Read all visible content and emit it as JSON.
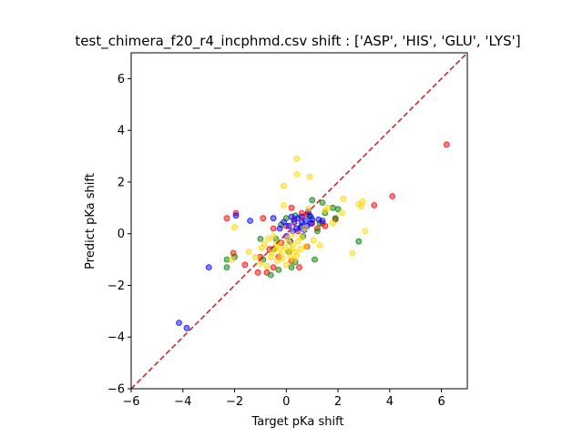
{
  "chart_data": {
    "type": "scatter",
    "title": "test_chimera_f20_r4_incphmd.csv shift : ['ASP', 'HIS', 'GLU', 'LYS']",
    "xlabel": "Target pKa shift",
    "ylabel": "Predict pKa shift",
    "xlim": [
      -6,
      7
    ],
    "ylim": [
      -6,
      7
    ],
    "xticks": [
      -6,
      -4,
      -2,
      0,
      2,
      4,
      6
    ],
    "yticks": [
      -6,
      -4,
      -2,
      0,
      2,
      4,
      6
    ],
    "xtick_labels": [
      "−6",
      "−4",
      "−2",
      "0",
      "2",
      "4",
      "6"
    ],
    "ytick_labels": [
      "−6",
      "−4",
      "−2",
      "0",
      "2",
      "4",
      "6"
    ],
    "grid": false,
    "legend": false,
    "reference_line": {
      "x": [
        -6,
        7
      ],
      "y": [
        -6,
        7
      ],
      "style": "dashed",
      "color": "#d62728"
    },
    "marker_opacity": 0.5,
    "series": [
      {
        "color": "#ff0000",
        "points": [
          [
            6.2,
            3.45
          ],
          [
            4.1,
            1.45
          ],
          [
            3.4,
            1.1
          ],
          [
            -2.3,
            0.6
          ],
          [
            -1.95,
            0.8
          ],
          [
            -2.05,
            -0.75
          ],
          [
            -1.6,
            -1.2
          ],
          [
            -1.1,
            -1.5
          ],
          [
            -0.75,
            -1.5
          ],
          [
            -0.5,
            -1.3
          ],
          [
            -0.9,
            0.6
          ],
          [
            -0.5,
            0.2
          ],
          [
            0.2,
            1.0
          ],
          [
            0.6,
            0.8
          ],
          [
            0.8,
            0.75
          ],
          [
            1.0,
            0.4
          ],
          [
            1.2,
            0.2
          ],
          [
            1.4,
            0.4
          ],
          [
            0.5,
            -1.3
          ],
          [
            0.2,
            -1.05
          ],
          [
            -0.2,
            -0.35
          ],
          [
            0.0,
            0.3
          ],
          [
            0.45,
            0.1
          ],
          [
            1.5,
            0.3
          ],
          [
            -0.3,
            -0.9
          ],
          [
            0.8,
            -0.5
          ],
          [
            1.9,
            0.55
          ],
          [
            0.3,
            0.55
          ],
          [
            -1.0,
            -0.9
          ],
          [
            -0.65,
            -0.6
          ]
        ]
      },
      {
        "color": "#008000",
        "points": [
          [
            -2.3,
            -1.3
          ],
          [
            -2.3,
            -1.0
          ],
          [
            -2.0,
            -0.9
          ],
          [
            -1.0,
            -0.2
          ],
          [
            -0.6,
            -1.6
          ],
          [
            -0.3,
            -1.4
          ],
          [
            0.2,
            -1.3
          ],
          [
            0.35,
            -1.1
          ],
          [
            1.1,
            -1.0
          ],
          [
            0.0,
            0.6
          ],
          [
            0.35,
            0.7
          ],
          [
            1.0,
            1.3
          ],
          [
            1.4,
            1.2
          ],
          [
            1.5,
            0.8
          ],
          [
            1.8,
            1.0
          ],
          [
            1.9,
            0.6
          ],
          [
            2.0,
            0.95
          ],
          [
            2.8,
            -0.3
          ],
          [
            1.2,
            0.1
          ],
          [
            -0.5,
            -0.6
          ],
          [
            0.6,
            0.3
          ],
          [
            -0.2,
            0.35
          ],
          [
            0.1,
            -0.7
          ],
          [
            0.65,
            -0.1
          ],
          [
            -0.9,
            -1.0
          ],
          [
            1.3,
            0.4
          ],
          [
            0.95,
            0.65
          ],
          [
            -0.4,
            -0.2
          ]
        ]
      },
      {
        "color": "#0000ff",
        "points": [
          [
            -4.15,
            -3.45
          ],
          [
            -3.85,
            -3.65
          ],
          [
            -3.0,
            -1.3
          ],
          [
            -1.95,
            0.7
          ],
          [
            -1.4,
            0.5
          ],
          [
            -0.5,
            0.6
          ],
          [
            -0.25,
            0.2
          ],
          [
            0.1,
            0.3
          ],
          [
            0.25,
            0.1
          ],
          [
            0.4,
            0.2
          ],
          [
            0.6,
            0.45
          ],
          [
            0.75,
            0.5
          ],
          [
            0.9,
            0.7
          ],
          [
            1.0,
            0.55
          ],
          [
            0.8,
            0.3
          ],
          [
            0.55,
            0.25
          ],
          [
            0.3,
            0.45
          ],
          [
            0.2,
            0.65
          ],
          [
            1.4,
            0.5
          ],
          [
            0.0,
            -0.1
          ],
          [
            0.45,
            0.6
          ],
          [
            0.7,
            0.15
          ],
          [
            0.95,
            0.4
          ],
          [
            -0.1,
            0.45
          ],
          [
            1.25,
            0.55
          ],
          [
            0.15,
            -0.3
          ],
          [
            0.85,
            0.85
          ],
          [
            0.6,
            0.65
          ]
        ]
      },
      {
        "color": "#ffd700",
        "points": [
          [
            0.4,
            2.9
          ],
          [
            0.4,
            2.3
          ],
          [
            -0.1,
            1.85
          ],
          [
            0.9,
            2.2
          ],
          [
            2.2,
            1.35
          ],
          [
            2.95,
            1.25
          ],
          [
            2.9,
            1.05
          ],
          [
            3.05,
            0.1
          ],
          [
            2.55,
            -0.75
          ],
          [
            1.8,
            0.4
          ],
          [
            -0.1,
            1.1
          ],
          [
            -2.0,
            0.25
          ],
          [
            -2.1,
            -1.0
          ],
          [
            -1.45,
            -0.7
          ],
          [
            -1.2,
            -0.9
          ],
          [
            -1.0,
            -1.15
          ],
          [
            -0.85,
            -0.4
          ],
          [
            -0.75,
            -1.25
          ],
          [
            -0.6,
            -0.9
          ],
          [
            -0.45,
            -0.6
          ],
          [
            -0.3,
            -0.35
          ],
          [
            -0.2,
            -0.8
          ],
          [
            -0.05,
            -0.55
          ],
          [
            0.05,
            -0.2
          ],
          [
            0.15,
            -0.9
          ],
          [
            0.25,
            -0.45
          ],
          [
            0.35,
            -0.7
          ],
          [
            0.45,
            -0.3
          ],
          [
            0.55,
            -0.6
          ],
          [
            0.7,
            0.2
          ],
          [
            1.05,
            -0.25
          ],
          [
            1.3,
            -0.45
          ],
          [
            1.5,
            0.9
          ],
          [
            2.15,
            0.8
          ],
          [
            2.8,
            1.15
          ],
          [
            -0.5,
            -0.1
          ],
          [
            -0.35,
            -1.05
          ],
          [
            0.0,
            -1.2
          ],
          [
            0.2,
            -0.05
          ],
          [
            0.85,
            0.95
          ],
          [
            -0.7,
            -0.2
          ],
          [
            -0.15,
            -0.95
          ],
          [
            0.1,
            -0.35
          ],
          [
            0.3,
            -1.0
          ],
          [
            0.6,
            -0.15
          ],
          [
            -0.25,
            -0.6
          ],
          [
            -0.95,
            -0.55
          ],
          [
            0.4,
            -0.85
          ],
          [
            0.05,
            -0.7
          ],
          [
            -0.55,
            -0.75
          ],
          [
            1.6,
            1.0
          ],
          [
            0.75,
            -0.5
          ],
          [
            -0.4,
            -0.45
          ],
          [
            0.2,
            -0.6
          ]
        ]
      }
    ]
  }
}
